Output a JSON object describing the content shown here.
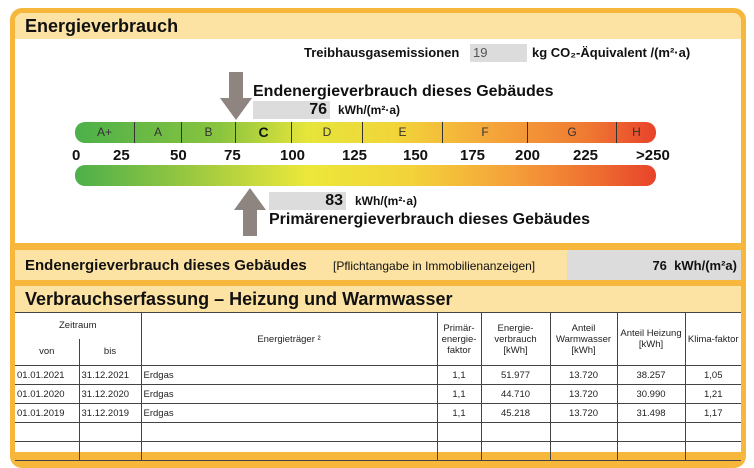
{
  "title": "Energieverbrauch",
  "ghg": {
    "label": "Treibhausgasemissionen",
    "value": "19",
    "unit": "kg CO₂-Äquivalent /(m²·a)"
  },
  "end": {
    "label": "Endenergieverbrauch dieses Gebäudes",
    "value": "76",
    "unit": "kWh/(m²·a)"
  },
  "primary": {
    "label": "Primärenergieverbrauch dieses Gebäudes",
    "value": "83",
    "unit": "kWh/(m²·a)"
  },
  "classes": [
    "A+",
    "A",
    "B",
    "C",
    "D",
    "E",
    "F",
    "G",
    "H"
  ],
  "active_class": "C",
  "ticks": [
    "0",
    "25",
    "50",
    "75",
    "100",
    "125",
    "150",
    "175",
    "200",
    "225",
    ">250"
  ],
  "summary": {
    "label": "Endenergieverbrauch dieses Gebäudes",
    "note": "[Pflichtangabe in Immobilienanzeigen]",
    "value": "76",
    "unit": "kWh/(m²a)"
  },
  "section2": "Verbrauchserfassung – Heizung und Warmwasser",
  "table": {
    "zeitraum": "Zeitraum",
    "von": "von",
    "bis": "bis",
    "traeger": "Energieträger ²",
    "pef": "Primär-energie-faktor",
    "ev": "Energie-verbrauch [kWh]",
    "ww": "Anteil Warmwasser [kWh]",
    "hz": "Anteil Heizung [kWh]",
    "kf": "Klima-faktor",
    "rows": [
      [
        "01.01.2021",
        "31.12.2021",
        "Erdgas",
        "1,1",
        "51.977",
        "13.720",
        "38.257",
        "1,05"
      ],
      [
        "01.01.2020",
        "31.12.2020",
        "Erdgas",
        "1,1",
        "44.710",
        "13.720",
        "30.990",
        "1,21"
      ],
      [
        "01.01.2019",
        "31.12.2019",
        "Erdgas",
        "1,1",
        "45.218",
        "13.720",
        "31.498",
        "1,17"
      ],
      [
        "",
        "",
        "",
        "",
        "",
        "",
        "",
        ""
      ],
      [
        "",
        "",
        "",
        "",
        "",
        "",
        "",
        ""
      ]
    ]
  }
}
